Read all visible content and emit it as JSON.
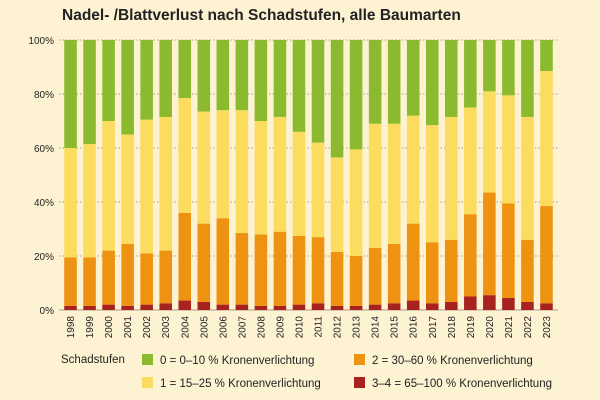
{
  "chart_data": {
    "type": "bar",
    "stacked": true,
    "title": "Nadel- /Blattverlust nach Schadstufen, alle Baumarten",
    "xlabel": "",
    "ylabel": "",
    "ylim": [
      0,
      100
    ],
    "y_ticks": [
      "0%",
      "20%",
      "40%",
      "60%",
      "80%",
      "100%"
    ],
    "grid": "horizontal dotted",
    "legend_title": "Schadstufen",
    "legend_position": "bottom",
    "categories": [
      "1998",
      "1999",
      "2000",
      "2001",
      "2002",
      "2003",
      "2004",
      "2005",
      "2006",
      "2007",
      "2008",
      "2009",
      "2010",
      "2011",
      "2012",
      "2013",
      "2014",
      "2015",
      "2016",
      "2017",
      "2018",
      "2019",
      "2020",
      "2021",
      "2022",
      "2023"
    ],
    "series": [
      {
        "name": "3–4 = 65–100 % Kronenverlichtung",
        "color": "#a82220",
        "values": [
          1.5,
          1.5,
          2,
          1.5,
          2,
          2.5,
          3.5,
          3,
          2,
          2,
          1.5,
          1.5,
          2,
          2.5,
          1.5,
          1.5,
          2,
          2.5,
          3.5,
          2.5,
          3,
          5,
          5.5,
          4.5,
          3,
          2.5
        ]
      },
      {
        "name": "2 = 30–60 % Kronenverlichtung",
        "color": "#ee9212",
        "values": [
          18,
          18,
          20,
          23,
          19,
          19.5,
          32.5,
          29,
          32,
          26.5,
          26.5,
          27.5,
          25.5,
          24.5,
          20,
          18.5,
          21,
          22,
          28.5,
          22.5,
          23,
          30.5,
          38,
          35,
          23,
          36
        ]
      },
      {
        "name": "1 = 15–25 % Kronenverlichtung",
        "color": "#fcdc5e",
        "values": [
          40.5,
          42,
          48,
          40.5,
          49.5,
          49.5,
          42.5,
          41.5,
          40,
          45.5,
          42,
          42.5,
          38.5,
          35,
          35,
          39.5,
          46,
          44.5,
          40,
          43.5,
          45.5,
          39.5,
          37.5,
          40,
          45.5,
          50
        ]
      },
      {
        "name": "0 = 0–10 % Kronenverlichtung",
        "color": "#8cba2f",
        "values": [
          40,
          38.5,
          30,
          35,
          29.5,
          28.5,
          21.5,
          26.5,
          26,
          26,
          30,
          28.5,
          34,
          38,
          43.5,
          40.5,
          31,
          31,
          28,
          31.5,
          28.5,
          25,
          19,
          20.5,
          28.5,
          11.5
        ]
      }
    ]
  },
  "legend": {
    "title": "Schadstufen",
    "items": [
      {
        "label": "0 = 0–10 % Kronenverlichtung",
        "color": "#8cba2f"
      },
      {
        "label": "2 = 30–60 % Kronenverlichtung",
        "color": "#ee9212"
      },
      {
        "label": "1 = 15–25 % Kronenverlichtung",
        "color": "#fcdc5e"
      },
      {
        "label": "3–4 = 65–100 % Kronenverlichtung",
        "color": "#a82220"
      }
    ]
  }
}
